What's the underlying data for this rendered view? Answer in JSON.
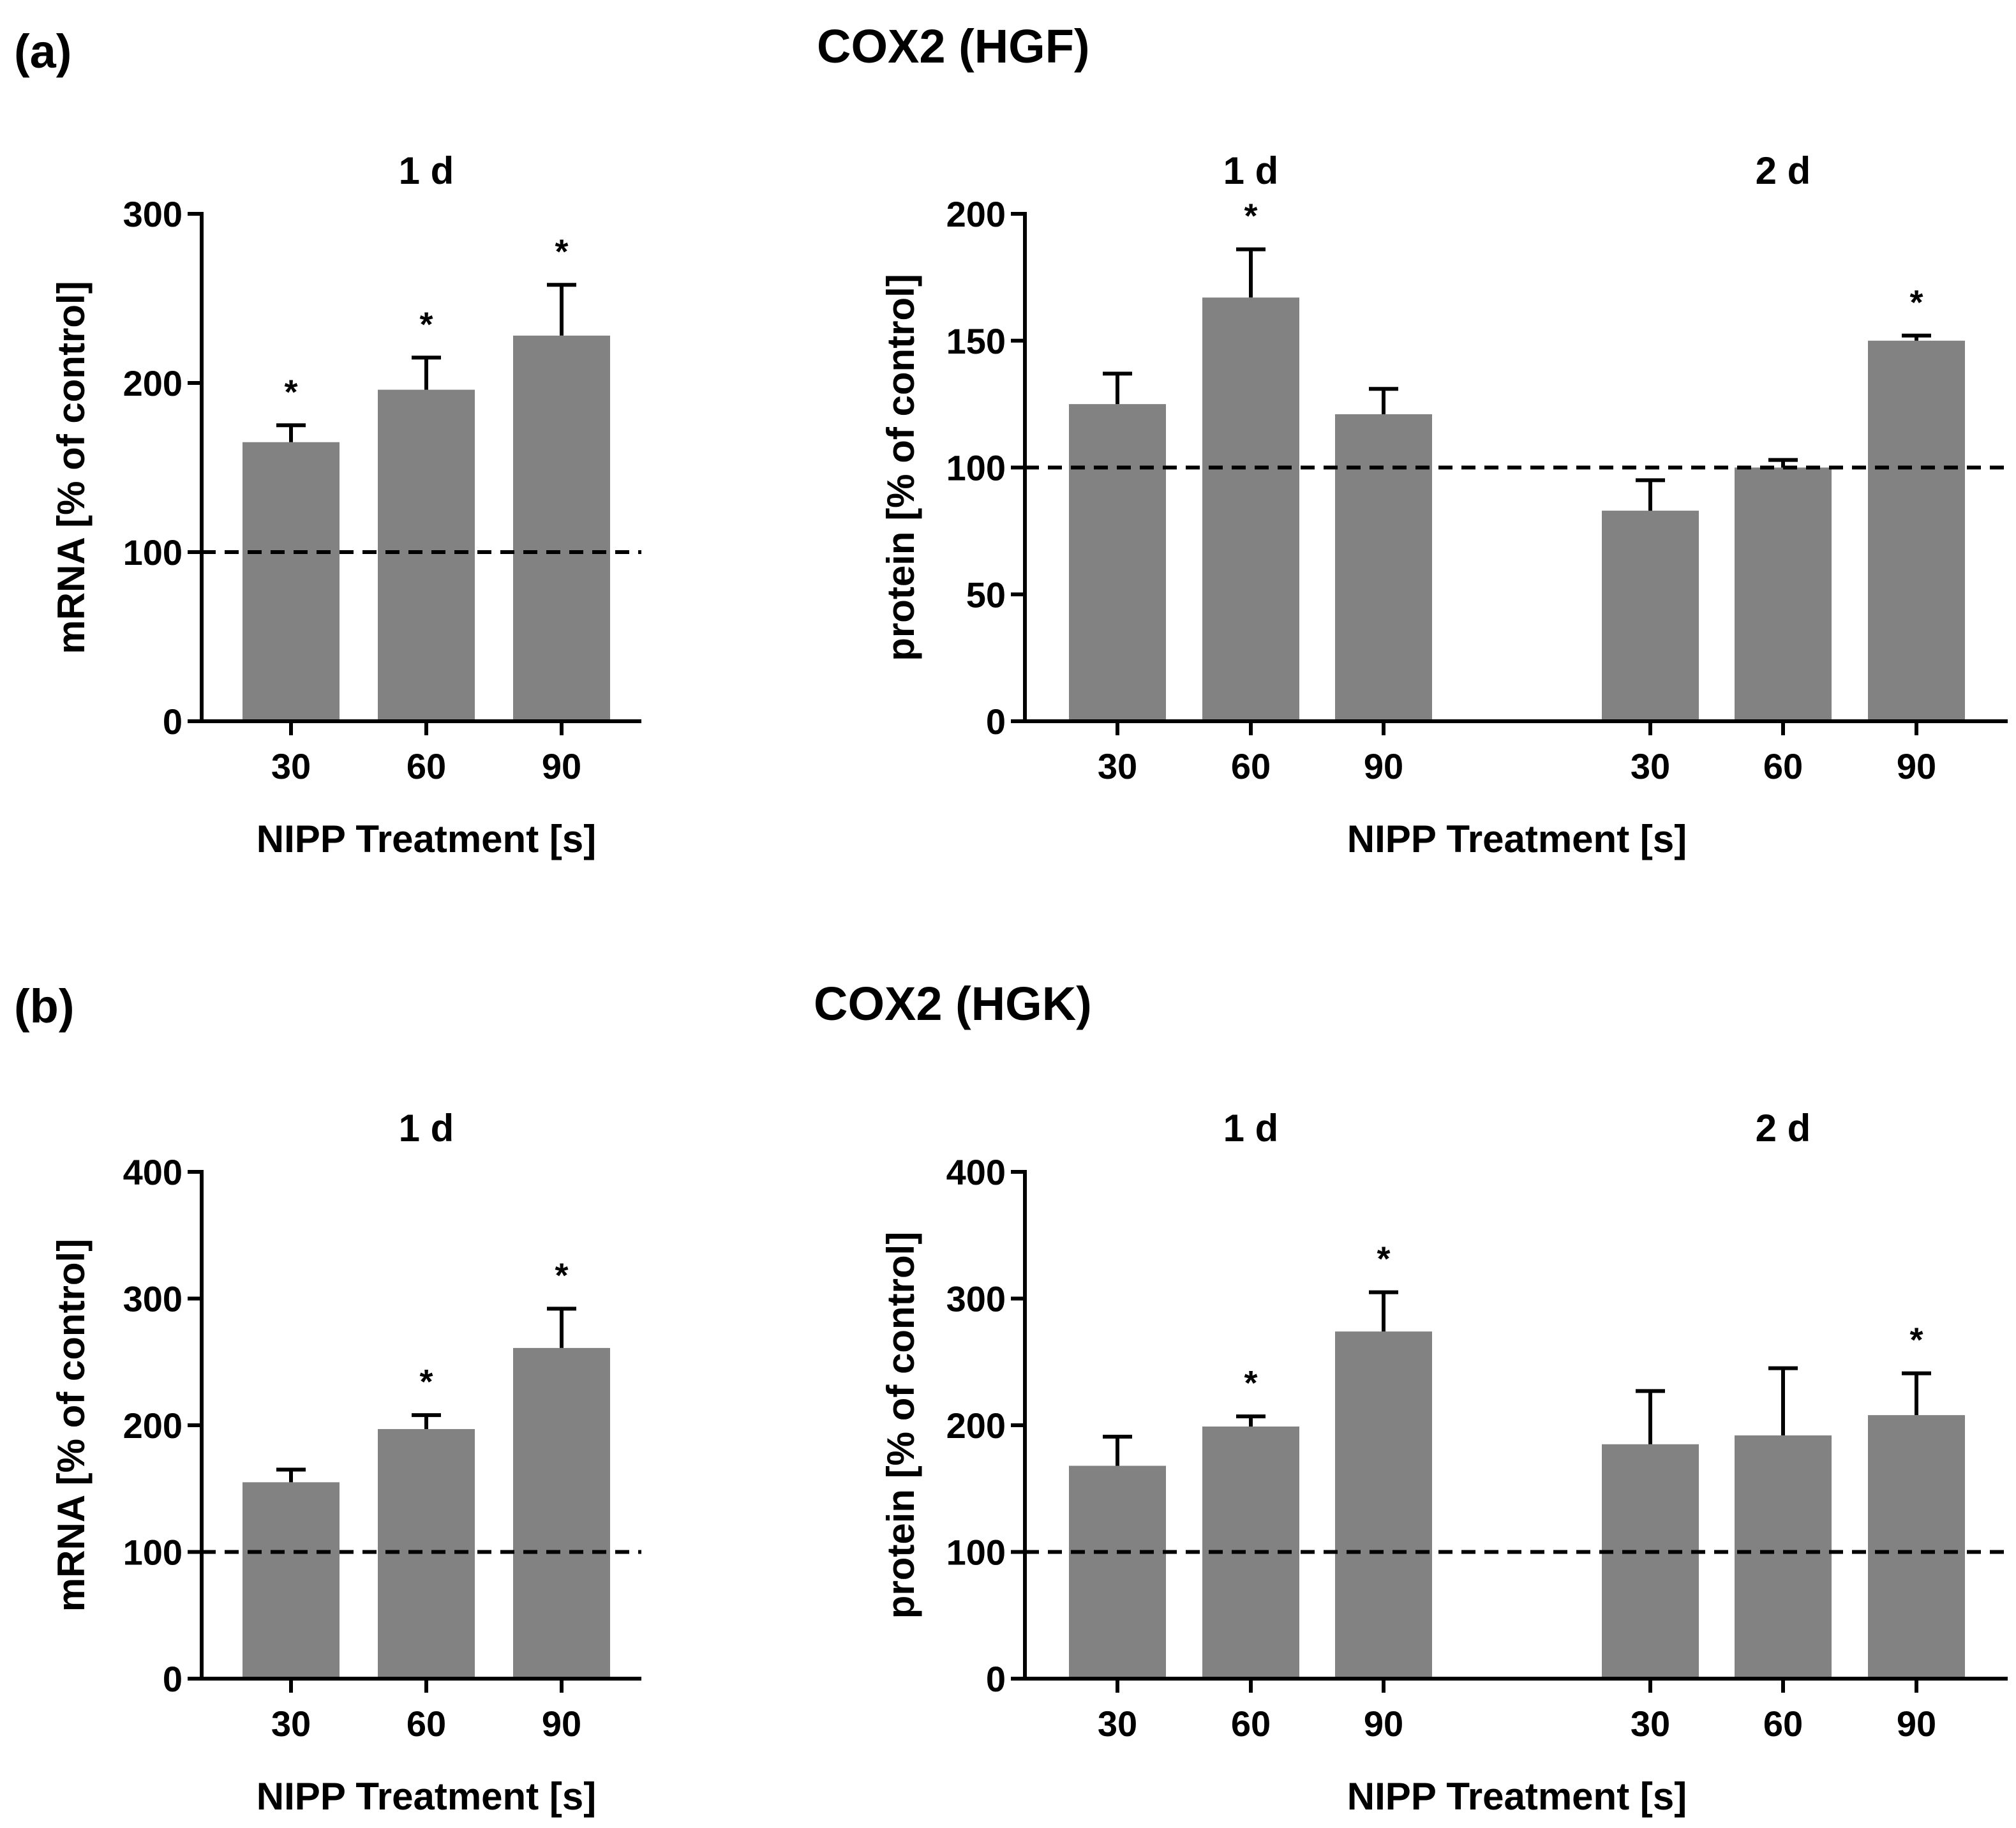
{
  "figure": {
    "panels": [
      {
        "letter": "(a)",
        "title": "COX2 (HGF)"
      },
      {
        "letter": "(b)",
        "title": "COX2 (HGK)"
      }
    ]
  },
  "chart_data": [
    {
      "id": "a-mrna",
      "type": "bar",
      "panel": "(a)",
      "groups": [
        {
          "title": "1 d",
          "categories": [
            "30",
            "60",
            "90"
          ]
        }
      ],
      "values": [
        165,
        196,
        228
      ],
      "errors": [
        10,
        19,
        30
      ],
      "significant": [
        true,
        true,
        true
      ],
      "star_label": "*",
      "reference_line": 100,
      "ylim": [
        0,
        300
      ],
      "yticks": [
        0,
        100,
        200,
        300
      ],
      "ylabel": "mRNA [% of control]",
      "xlabel": "NIPP Treatment [s]",
      "bar_color": "#828282"
    },
    {
      "id": "a-protein",
      "type": "bar",
      "panel": "(a)",
      "groups": [
        {
          "title": "1 d",
          "categories": [
            "30",
            "60",
            "90"
          ]
        },
        {
          "title": "2 d",
          "categories": [
            "30",
            "60",
            "90"
          ]
        }
      ],
      "values": [
        125,
        167,
        121,
        83,
        100,
        150
      ],
      "errors": [
        12,
        19,
        10,
        12,
        3,
        2
      ],
      "significant": [
        false,
        true,
        false,
        false,
        false,
        true
      ],
      "star_label": "*",
      "reference_line": 100,
      "ylim": [
        0,
        200
      ],
      "yticks": [
        0,
        50,
        100,
        150,
        200
      ],
      "ylabel": "protein [% of control]",
      "xlabel": "NIPP Treatment [s]",
      "bar_color": "#828282"
    },
    {
      "id": "b-mrna",
      "type": "bar",
      "panel": "(b)",
      "groups": [
        {
          "title": "1 d",
          "categories": [
            "30",
            "60",
            "90"
          ]
        }
      ],
      "values": [
        155,
        197,
        261
      ],
      "errors": [
        10,
        11,
        31
      ],
      "significant": [
        false,
        true,
        true
      ],
      "star_label": "*",
      "reference_line": 100,
      "ylim": [
        0,
        400
      ],
      "yticks": [
        0,
        100,
        200,
        300,
        400
      ],
      "ylabel": "mRNA [% of control]",
      "xlabel": "NIPP Treatment [s]",
      "bar_color": "#828282"
    },
    {
      "id": "b-protein",
      "type": "bar",
      "panel": "(b)",
      "groups": [
        {
          "title": "1 d",
          "categories": [
            "30",
            "60",
            "90"
          ]
        },
        {
          "title": "2 d",
          "categories": [
            "30",
            "60",
            "90"
          ]
        }
      ],
      "values": [
        168,
        199,
        274,
        185,
        192,
        208
      ],
      "errors": [
        23,
        8,
        31,
        42,
        53,
        33
      ],
      "significant": [
        false,
        true,
        true,
        false,
        false,
        true
      ],
      "star_label": "*",
      "reference_line": 100,
      "ylim": [
        0,
        400
      ],
      "yticks": [
        0,
        100,
        200,
        300,
        400
      ],
      "ylabel": "protein [% of control]",
      "xlabel": "NIPP Treatment [s]",
      "bar_color": "#828282"
    }
  ]
}
